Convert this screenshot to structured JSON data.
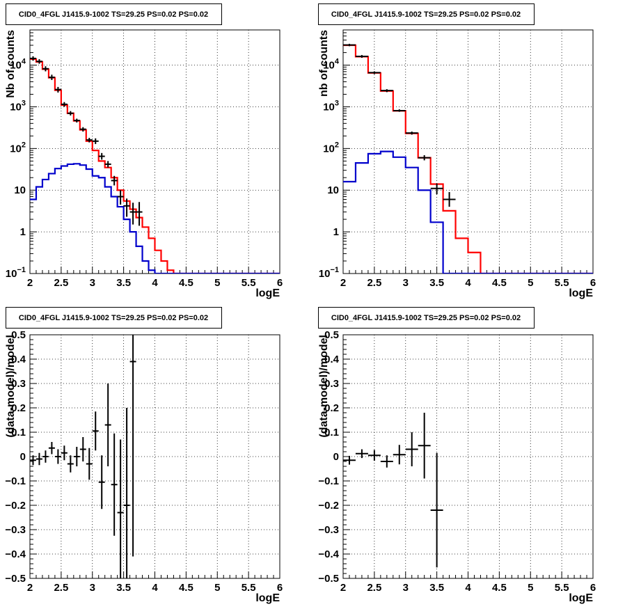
{
  "chart_data": [
    {
      "type": "histogram",
      "title": "CID0_4FGL J1415.9-1002 TS=29.25 PS=0.02 PS=0.02",
      "xlabel": "logE",
      "ylabel": "Nb of counts",
      "xlim": [
        2,
        6
      ],
      "ylim": [
        0.1,
        70000
      ],
      "ylog": true,
      "grid": true,
      "x_ticks": [
        "2",
        "2.5",
        "3",
        "3.5",
        "4",
        "4.5",
        "5",
        "5.5",
        "6"
      ],
      "y_ticks": [
        {
          "v": 0.1,
          "t": "10",
          "sup": "−1"
        },
        {
          "v": 1,
          "t": "1",
          "sup": ""
        },
        {
          "v": 10,
          "t": "10",
          "sup": ""
        },
        {
          "v": 100,
          "t": "10",
          "sup": "2"
        },
        {
          "v": 1000,
          "t": "10",
          "sup": "3"
        },
        {
          "v": 10000,
          "t": "10",
          "sup": "4"
        }
      ],
      "bin_edges": [
        2.0,
        2.1,
        2.2,
        2.3,
        2.4,
        2.5,
        2.6,
        2.7,
        2.8,
        2.9,
        3.0,
        3.1,
        3.2,
        3.3,
        3.4,
        3.5,
        3.6,
        3.7,
        3.8,
        3.9,
        4.0,
        4.1,
        4.2,
        4.3,
        4.4,
        4.5,
        4.6,
        4.7,
        4.8,
        4.9,
        5.0,
        5.1,
        5.2,
        5.3,
        5.4,
        5.5,
        5.6,
        5.7,
        5.8,
        5.9,
        6.0
      ],
      "series": [
        {
          "color": "#ff0000",
          "values": [
            14000,
            12000,
            8000,
            5000,
            2500,
            1100,
            700,
            460,
            280,
            150,
            90,
            50,
            35,
            20,
            10,
            5.5,
            3.5,
            2.2,
            1.3,
            0.7,
            0.36,
            0.2,
            0.12,
            0.1,
            0.1,
            0.1,
            0.1,
            0.1,
            0.1,
            0.1,
            0.1,
            0.1,
            0.1,
            0.1,
            0.1,
            0.1,
            0.1,
            0.1,
            0.1,
            0.1
          ]
        },
        {
          "color": "#0000cc",
          "values": [
            6,
            12,
            18,
            25,
            33,
            38,
            42,
            43,
            40,
            32,
            22,
            20,
            12,
            7,
            4,
            2,
            1,
            0.45,
            0.2,
            0.12,
            0.1,
            0.1,
            0.1,
            0.1,
            0.1,
            0.1,
            0.1,
            0.1,
            0.1,
            0.1,
            0.1,
            0.1,
            0.1,
            0.1,
            0.1,
            0.1,
            0.1,
            0.1,
            0.1,
            0.1
          ]
        }
      ],
      "points": [
        {
          "x": 2.05,
          "y": 14500,
          "ylo": 12800,
          "yhi": 16300
        },
        {
          "x": 2.15,
          "y": 12300,
          "ylo": 10800,
          "yhi": 13900
        },
        {
          "x": 2.25,
          "y": 8200,
          "ylo": 7100,
          "yhi": 9400
        },
        {
          "x": 2.35,
          "y": 5100,
          "ylo": 4400,
          "yhi": 5900
        },
        {
          "x": 2.45,
          "y": 2600,
          "ylo": 2200,
          "yhi": 3000
        },
        {
          "x": 2.55,
          "y": 1150,
          "ylo": 1000,
          "yhi": 1300
        },
        {
          "x": 2.65,
          "y": 700,
          "ylo": 620,
          "yhi": 790
        },
        {
          "x": 2.75,
          "y": 470,
          "ylo": 420,
          "yhi": 520
        },
        {
          "x": 2.85,
          "y": 290,
          "ylo": 255,
          "yhi": 325
        },
        {
          "x": 2.95,
          "y": 160,
          "ylo": 140,
          "yhi": 180
        },
        {
          "x": 3.05,
          "y": 150,
          "ylo": 128,
          "yhi": 175
        },
        {
          "x": 3.15,
          "y": 65,
          "ylo": 54,
          "yhi": 78
        },
        {
          "x": 3.25,
          "y": 42,
          "ylo": 35,
          "yhi": 50
        },
        {
          "x": 3.35,
          "y": 17,
          "ylo": 13,
          "yhi": 22
        },
        {
          "x": 3.45,
          "y": 7,
          "ylo": 4.5,
          "yhi": 10
        },
        {
          "x": 3.55,
          "y": 4.2,
          "ylo": 2.3,
          "yhi": 6.3
        },
        {
          "x": 3.65,
          "y": 3,
          "ylo": 1.5,
          "yhi": 5
        },
        {
          "x": 3.75,
          "y": 3,
          "ylo": 1.4,
          "yhi": 5.2
        }
      ]
    },
    {
      "type": "histogram",
      "title": "CID0_4FGL J1415.9-1002 TS=29.25 PS=0.02 PS=0.02",
      "xlabel": "logE",
      "ylabel": "nb of counts",
      "xlim": [
        2,
        6
      ],
      "ylim": [
        0.1,
        70000
      ],
      "ylog": true,
      "grid": true,
      "x_ticks": [
        "2",
        "2.5",
        "3",
        "3.5",
        "4",
        "4.5",
        "5",
        "5.5",
        "6"
      ],
      "y_ticks": [
        {
          "v": 0.1,
          "t": "10",
          "sup": "−1"
        },
        {
          "v": 1,
          "t": "1",
          "sup": ""
        },
        {
          "v": 10,
          "t": "10",
          "sup": ""
        },
        {
          "v": 100,
          "t": "10",
          "sup": "2"
        },
        {
          "v": 1000,
          "t": "10",
          "sup": "3"
        },
        {
          "v": 10000,
          "t": "10",
          "sup": "4"
        }
      ],
      "bin_edges": [
        2.0,
        2.2,
        2.4,
        2.6,
        2.8,
        3.0,
        3.2,
        3.4,
        3.6,
        3.8,
        4.0,
        4.2,
        4.4,
        4.6,
        4.8,
        5.0,
        5.2,
        5.4,
        5.6,
        5.8,
        6.0
      ],
      "series": [
        {
          "color": "#ff0000",
          "values": [
            30000,
            16000,
            6500,
            2400,
            800,
            230,
            60,
            14,
            3.2,
            0.7,
            0.32,
            0.1,
            0.1,
            0.1,
            0.1,
            0.1,
            0.1,
            0.1,
            0.1,
            0.1
          ]
        },
        {
          "color": "#0000cc",
          "values": [
            16,
            45,
            75,
            85,
            62,
            35,
            10,
            1.7,
            0.1,
            0.1,
            0.1,
            0.1,
            0.1,
            0.1,
            0.1,
            0.1,
            0.1,
            0.1,
            0.1,
            0.1
          ]
        }
      ],
      "points": [
        {
          "x": 2.1,
          "y": 30500,
          "ylo": 28500,
          "yhi": 32500
        },
        {
          "x": 2.3,
          "y": 16200,
          "ylo": 15000,
          "yhi": 17500
        },
        {
          "x": 2.5,
          "y": 6600,
          "ylo": 6100,
          "yhi": 7100
        },
        {
          "x": 2.7,
          "y": 2450,
          "ylo": 2250,
          "yhi": 2650
        },
        {
          "x": 2.9,
          "y": 810,
          "ylo": 760,
          "yhi": 870
        },
        {
          "x": 3.1,
          "y": 235,
          "ylo": 215,
          "yhi": 255
        },
        {
          "x": 3.3,
          "y": 60,
          "ylo": 52,
          "yhi": 69
        },
        {
          "x": 3.5,
          "y": 11,
          "ylo": 8,
          "yhi": 14.5
        },
        {
          "x": 3.7,
          "y": 6,
          "ylo": 4,
          "yhi": 9
        }
      ]
    },
    {
      "type": "errorbar",
      "title": "CID0_4FGL J1415.9-1002 TS=29.25 PS=0.02 PS=0.02",
      "xlabel": "logE",
      "ylabel": "(data-model)/model",
      "xlim": [
        2,
        6
      ],
      "ylim": [
        -0.5,
        0.5
      ],
      "grid": true,
      "x_ticks": [
        "2",
        "2.5",
        "3",
        "3.5",
        "4",
        "4.5",
        "5",
        "5.5",
        "6"
      ],
      "y_ticks": [
        "−0.5",
        "−0.4",
        "−0.3",
        "−0.2",
        "−0.1",
        "0",
        "0.1",
        "0.2",
        "0.3",
        "0.4",
        "0.5"
      ],
      "points": [
        {
          "x": 2.05,
          "y": -0.015,
          "err": 0.02,
          "xerr": 0.05
        },
        {
          "x": 2.15,
          "y": -0.01,
          "err": 0.025,
          "xerr": 0.05
        },
        {
          "x": 2.25,
          "y": 0.0,
          "err": 0.025,
          "xerr": 0.05
        },
        {
          "x": 2.35,
          "y": 0.035,
          "err": 0.025,
          "xerr": 0.05
        },
        {
          "x": 2.45,
          "y": 0.0,
          "err": 0.03,
          "xerr": 0.05
        },
        {
          "x": 2.55,
          "y": 0.015,
          "err": 0.03,
          "xerr": 0.05
        },
        {
          "x": 2.65,
          "y": -0.03,
          "err": 0.035,
          "xerr": 0.05
        },
        {
          "x": 2.75,
          "y": 0.0,
          "err": 0.04,
          "xerr": 0.05
        },
        {
          "x": 2.85,
          "y": 0.03,
          "err": 0.05,
          "xerr": 0.05
        },
        {
          "x": 2.95,
          "y": -0.03,
          "err": 0.065,
          "xerr": 0.05
        },
        {
          "x": 3.05,
          "y": 0.105,
          "err": 0.08,
          "xerr": 0.05
        },
        {
          "x": 3.15,
          "y": -0.105,
          "err": 0.11,
          "xerr": 0.05
        },
        {
          "x": 3.25,
          "y": 0.13,
          "err": 0.17,
          "xerr": 0.05
        },
        {
          "x": 3.35,
          "y": -0.115,
          "err": 0.21,
          "xerr": 0.05
        },
        {
          "x": 3.45,
          "y": -0.23,
          "err": 0.3,
          "xerr": 0.05
        },
        {
          "x": 3.55,
          "y": -0.2,
          "err": 0.4,
          "xerr": 0.05
        },
        {
          "x": 3.65,
          "y": 0.39,
          "err": 0.8,
          "xerr": 0.05
        }
      ]
    },
    {
      "type": "errorbar",
      "title": "CID0_4FGL J1415.9-1002 TS=29.25 PS=0.02 PS=0.02",
      "xlabel": "logE",
      "ylabel": "(data-model)/model",
      "xlim": [
        2,
        6
      ],
      "ylim": [
        -0.5,
        0.5
      ],
      "grid": true,
      "x_ticks": [
        "2",
        "2.5",
        "3",
        "3.5",
        "4",
        "4.5",
        "5",
        "5.5",
        "6"
      ],
      "y_ticks": [
        "−0.5",
        "−0.4",
        "−0.3",
        "−0.2",
        "−0.1",
        "0",
        "0.1",
        "0.2",
        "0.3",
        "0.4",
        "0.5"
      ],
      "points": [
        {
          "x": 2.1,
          "y": -0.015,
          "err": 0.018,
          "xerr": 0.1
        },
        {
          "x": 2.3,
          "y": 0.012,
          "err": 0.018,
          "xerr": 0.1
        },
        {
          "x": 2.5,
          "y": 0.005,
          "err": 0.022,
          "xerr": 0.1
        },
        {
          "x": 2.7,
          "y": -0.02,
          "err": 0.025,
          "xerr": 0.1
        },
        {
          "x": 2.9,
          "y": 0.008,
          "err": 0.04,
          "xerr": 0.1
        },
        {
          "x": 3.1,
          "y": 0.03,
          "err": 0.07,
          "xerr": 0.1
        },
        {
          "x": 3.3,
          "y": 0.045,
          "err": 0.135,
          "xerr": 0.1
        },
        {
          "x": 3.5,
          "y": -0.22,
          "err": 0.235,
          "xerr": 0.1
        }
      ]
    }
  ]
}
